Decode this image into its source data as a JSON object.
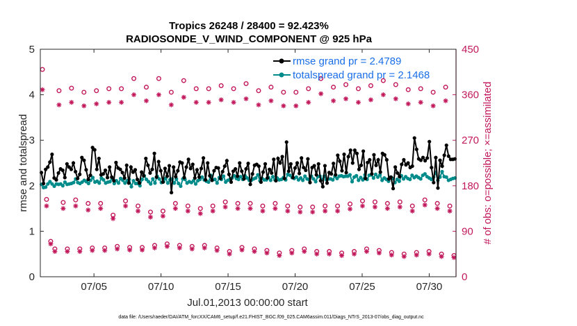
{
  "chart_data": {
    "type": "line",
    "title": "Tropics 26248 / 28400 = 92.423%",
    "subtitle": "RADIOSONDE_V_WIND_COMPONENT @ 925 hPa",
    "xlabel": "Jul.01,2013 00:00:00 start",
    "ylabel": "rmse and totalspread",
    "y2label": "# of obs: o=possible; ×=assimilated",
    "footnote": "data file: /Users/raeder/DAI/ATM_forcXX/CAM6_setup/f.e21.FHIST_BGC.f09_025.CAM6assim.011/Diags_NTrS_2013-07/obs_diag_output.nc",
    "xlim": [
      1,
      32
    ],
    "ylim": [
      0,
      5
    ],
    "y2lim": [
      0,
      450
    ],
    "x_ticks": [
      5,
      10,
      15,
      20,
      25,
      30
    ],
    "x_tick_labels": [
      "07/05",
      "07/10",
      "07/15",
      "07/20",
      "07/25",
      "07/30"
    ],
    "y_ticks": [
      0,
      1,
      2,
      3,
      4,
      5
    ],
    "y_tick_labels": [
      "0",
      "1",
      "2",
      "3",
      "4",
      "5"
    ],
    "y2_ticks": [
      0,
      90,
      180,
      270,
      360,
      450
    ],
    "y2_tick_labels": [
      "0",
      "90",
      "180",
      "270",
      "360",
      "450"
    ],
    "legend_position": "top-right",
    "series": [
      {
        "name": "rmse grand pr = 2.4789",
        "axis": "left",
        "color": "#000000",
        "marker": "filled-circle",
        "values": [
          2.29,
          2.05,
          2.36,
          2.41,
          2.52,
          2.69,
          2.17,
          2.13,
          2.28,
          2.37,
          2.34,
          2.18,
          2.48,
          2.41,
          2.36,
          2.5,
          2.31,
          2.16,
          2.25,
          2.62,
          2.56,
          2.35,
          2.14,
          2.23,
          2.84,
          2.79,
          2.36,
          2.6,
          2.24,
          2.26,
          2.34,
          2.18,
          2.41,
          2.19,
          2.11,
          2.51,
          2.39,
          2.36,
          2.29,
          2.17,
          2.45,
          2.06,
          2.41,
          2.3,
          2.35,
          2.14,
          2.06,
          2.3,
          2.22,
          2.6,
          2.45,
          2.28,
          2.36,
          2.71,
          2.19,
          2.53,
          2.33,
          2.08,
          2.38,
          2.21,
          2.44,
          1.85,
          2.41,
          2.2,
          2.33,
          2.52,
          2.5,
          2.18,
          2.41,
          2.58,
          2.38,
          2.47,
          2.17,
          2.35,
          2.19,
          2.38,
          2.61,
          2.13,
          2.5,
          2.22,
          2.12,
          2.33,
          2.4,
          2.39,
          2.16,
          2.31,
          2.43,
          2.55,
          2.25,
          2.08,
          2.32,
          2.37,
          2.21,
          2.5,
          2.32,
          2.15,
          2.37,
          2.49,
          2.03,
          2.26,
          2.45,
          2.47,
          2.43,
          2.08,
          2.3,
          2.48,
          2.17,
          2.36,
          2.28,
          2.58,
          2.11,
          2.6,
          2.5,
          2.64,
          2.16,
          2.96,
          2.32,
          2.48,
          2.18,
          2.39,
          2.5,
          2.27,
          2.61,
          2.4,
          2.34,
          2.59,
          2.07,
          2.4,
          2.44,
          2.24,
          2.48,
          2.11,
          1.98,
          2.44,
          2.06,
          2.29,
          2.26,
          2.49,
          2.24,
          2.67,
          2.54,
          2.33,
          2.69,
          2.29,
          2.64,
          2.78,
          2.5,
          2.78,
          2.71,
          2.36,
          2.45,
          2.76,
          2.16,
          2.51,
          2.57,
          2.26,
          2.68,
          2.45,
          2.57,
          2.3,
          2.71,
          2.68,
          2.57,
          2.15,
          2.19,
          1.94,
          2.41,
          2.28,
          2.2,
          2.47,
          2.57,
          2.46,
          2.5,
          2.4,
          2.43,
          3.05,
          2.8,
          2.59,
          2.56,
          2.62,
          2.55,
          2.61,
          2.97,
          2.4,
          2.07,
          2.62,
          1.95,
          2.56,
          2.43,
          2.67,
          2.89,
          2.65,
          2.58,
          2.58,
          2.59
        ]
      },
      {
        "name": "totalspread grand pr = 2.1468",
        "axis": "left",
        "color": "#008b8b",
        "marker": "filled-circle",
        "values": [
          2.03,
          1.96,
          1.97,
          2.04,
          2.09,
          2.04,
          1.99,
          2.04,
          2.03,
          2.04,
          2.0,
          2.08,
          2.03,
          2.04,
          2.05,
          2.07,
          2.15,
          2.07,
          2.05,
          2.08,
          2.12,
          2.09,
          2.05,
          2.12,
          2.18,
          2.08,
          2.1,
          2.06,
          2.17,
          2.13,
          2.06,
          2.08,
          2.09,
          2.16,
          2.05,
          2.11,
          2.06,
          2.16,
          2.12,
          2.06,
          2.11,
          2.14,
          1.98,
          2.11,
          2.05,
          2.05,
          2.0,
          2.14,
          2.22,
          2.14,
          2.09,
          2.04,
          2.15,
          2.06,
          2.21,
          2.15,
          2.07,
          2.09,
          2.16,
          2.06,
          2.13,
          2.15,
          2.06,
          2.15,
          2.05,
          1.99,
          2.15,
          2.14,
          2.06,
          2.09,
          2.07,
          2.11,
          2.04,
          2.11,
          2.14,
          2.19,
          2.13,
          2.1,
          2.08,
          2.23,
          2.13,
          2.14,
          2.06,
          2.18,
          2.14,
          2.21,
          2.08,
          2.12,
          2.14,
          2.17,
          2.22,
          2.16,
          2.14,
          2.2,
          2.14,
          2.22,
          2.17,
          2.12,
          2.12,
          2.15,
          2.17,
          2.24,
          2.11,
          2.16,
          2.13,
          2.13,
          2.18,
          2.12,
          2.2,
          2.13,
          2.17,
          2.13,
          2.14,
          2.18,
          2.13,
          2.25,
          2.23,
          2.18,
          2.16,
          2.19,
          2.13,
          2.17,
          2.12,
          2.21,
          2.15,
          2.13,
          2.21,
          2.15,
          2.09,
          2.2,
          2.21,
          2.14,
          2.21,
          2.13,
          2.15,
          2.15,
          2.13,
          2.21,
          2.16,
          2.21,
          2.22,
          2.2,
          2.21,
          2.21,
          2.24,
          2.09,
          2.19,
          2.22,
          2.12,
          2.18,
          2.13,
          2.24,
          2.14,
          2.23,
          2.24,
          2.17,
          2.25,
          2.19,
          2.24,
          2.12,
          2.17,
          2.14,
          2.1,
          2.19,
          2.16,
          2.07,
          2.14,
          2.1,
          2.22,
          2.15,
          2.2,
          2.16,
          2.14,
          2.23,
          2.18,
          2.21,
          2.18,
          2.15,
          2.23,
          2.26,
          2.2,
          2.17,
          2.14,
          2.19,
          2.29,
          2.12,
          2.19,
          2.31,
          2.2,
          2.19,
          2.12,
          2.14,
          2.16,
          2.17
        ]
      },
      {
        "name": "obs possible",
        "axis": "right",
        "color": "#c2185b",
        "marker": "open-circle",
        "values": [
          410,
          153,
          70,
          55,
          368,
          147,
          55,
          373,
          152,
          55,
          365,
          145,
          57,
          368,
          145,
          57,
          372,
          122,
          60,
          372,
          150,
          58,
          392,
          140,
          58,
          375,
          128,
          62,
          392,
          130,
          65,
          365,
          145,
          62,
          388,
          140,
          60,
          372,
          135,
          62,
          372,
          140,
          57,
          378,
          148,
          50,
          372,
          145,
          58,
          382,
          145,
          55,
          368,
          140,
          52,
          375,
          145,
          47,
          365,
          140,
          52,
          365,
          138,
          55,
          372,
          138,
          50,
          392,
          140,
          50,
          375,
          140,
          47,
          380,
          144,
          50,
          372,
          150,
          55,
          378,
          148,
          52,
          388,
          145,
          48,
          380,
          148,
          45,
          370,
          140,
          48,
          372,
          152,
          50,
          365,
          145,
          45,
          375,
          140,
          42
        ]
      },
      {
        "name": "obs assimilated",
        "axis": "right",
        "color": "#c2185b",
        "marker": "asterisk",
        "values": [
          370,
          140,
          65,
          50,
          340,
          135,
          50,
          345,
          140,
          50,
          338,
          132,
          52,
          342,
          135,
          52,
          345,
          115,
          55,
          345,
          140,
          53,
          360,
          130,
          53,
          348,
          118,
          57,
          360,
          120,
          60,
          340,
          135,
          57,
          355,
          130,
          55,
          345,
          125,
          57,
          345,
          130,
          52,
          350,
          138,
          45,
          345,
          135,
          53,
          352,
          135,
          50,
          340,
          130,
          47,
          348,
          135,
          42,
          338,
          130,
          47,
          338,
          128,
          50,
          345,
          128,
          45,
          362,
          130,
          45,
          348,
          130,
          42,
          352,
          134,
          45,
          345,
          140,
          50,
          350,
          138,
          47,
          360,
          135,
          43,
          352,
          138,
          40,
          342,
          130,
          43,
          345,
          142,
          45,
          338,
          135,
          40,
          348,
          130,
          38
        ]
      }
    ]
  }
}
